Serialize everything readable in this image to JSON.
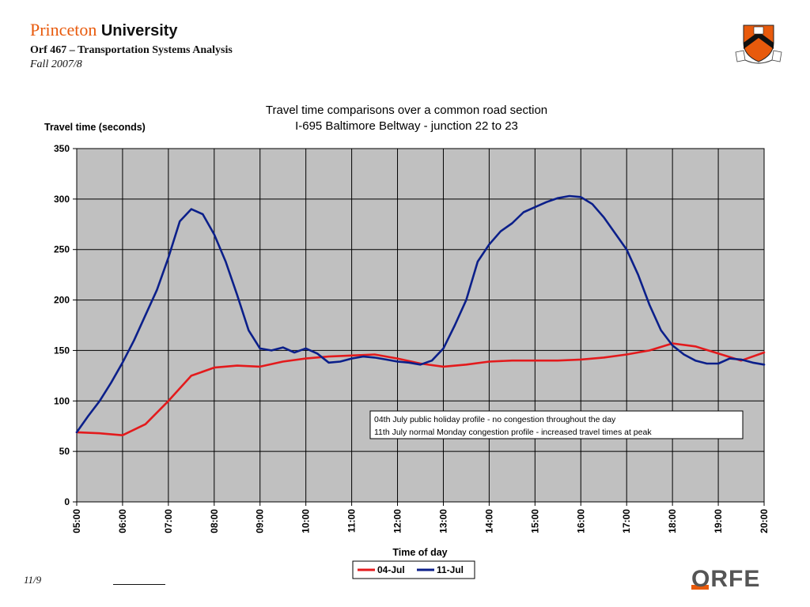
{
  "header": {
    "brand_part1": "Princeton",
    "brand_part2": "University",
    "course": "Orf 467 – Transportation Systems Analysis",
    "term": "Fall 2007/8"
  },
  "footer": {
    "date": "11/9",
    "logo_text": "ORFE"
  },
  "colors": {
    "accent": "#e85a0c",
    "plot_bg": "#c0c0c0",
    "series_jul4": "#e31a1c",
    "series_jul11": "#0b1f8a"
  },
  "chart_data": {
    "type": "line",
    "title": "Travel time comparisons over a common road section",
    "subtitle": "I-695 Baltimore Beltway - junction 22 to 23",
    "ylabel": "Travel time (seconds)",
    "xlabel": "Time of day",
    "ylim": [
      0,
      350
    ],
    "yticks": [
      "0",
      "50",
      "100",
      "150",
      "200",
      "250",
      "300",
      "350"
    ],
    "xticks": [
      "05:00",
      "06:00",
      "07:00",
      "08:00",
      "09:00",
      "10:00",
      "11:00",
      "12:00",
      "13:00",
      "14:00",
      "15:00",
      "16:00",
      "17:00",
      "18:00",
      "19:00",
      "20:00"
    ],
    "grid": true,
    "legend_position": "bottom",
    "annotation": [
      "04th July public holiday profile - no congestion throughout the day",
      "11th July normal Monday congestion profile - increased travel times at peak"
    ],
    "series": [
      {
        "name": "04-Jul",
        "x": [
          "05:00",
          "05:30",
          "06:00",
          "06:30",
          "07:00",
          "07:30",
          "08:00",
          "08:30",
          "09:00",
          "09:30",
          "10:00",
          "10:30",
          "11:00",
          "11:30",
          "12:00",
          "12:30",
          "13:00",
          "13:30",
          "14:00",
          "14:30",
          "15:00",
          "15:30",
          "16:00",
          "16:30",
          "17:00",
          "17:30",
          "18:00",
          "18:30",
          "19:00",
          "19:30",
          "20:00"
        ],
        "values": [
          69,
          68,
          66,
          77,
          100,
          125,
          133,
          135,
          134,
          139,
          142,
          144,
          145,
          146,
          142,
          137,
          134,
          136,
          139,
          140,
          140,
          140,
          141,
          143,
          146,
          150,
          157,
          154,
          147,
          140,
          148
        ]
      },
      {
        "name": "11-Jul",
        "x": [
          "05:00",
          "05:15",
          "05:30",
          "05:45",
          "06:00",
          "06:15",
          "06:30",
          "06:45",
          "07:00",
          "07:15",
          "07:30",
          "07:45",
          "08:00",
          "08:15",
          "08:30",
          "08:45",
          "09:00",
          "09:15",
          "09:30",
          "09:45",
          "10:00",
          "10:15",
          "10:30",
          "10:45",
          "11:00",
          "11:15",
          "11:30",
          "11:45",
          "12:00",
          "12:15",
          "12:30",
          "12:45",
          "13:00",
          "13:15",
          "13:30",
          "13:45",
          "14:00",
          "14:15",
          "14:30",
          "14:45",
          "15:00",
          "15:15",
          "15:30",
          "15:45",
          "16:00",
          "16:15",
          "16:30",
          "16:45",
          "17:00",
          "17:15",
          "17:30",
          "17:45",
          "18:00",
          "18:15",
          "18:30",
          "18:45",
          "19:00",
          "19:15",
          "19:30",
          "19:45",
          "20:00"
        ],
        "values": [
          69,
          85,
          100,
          118,
          138,
          160,
          185,
          210,
          242,
          278,
          290,
          285,
          265,
          238,
          205,
          170,
          152,
          150,
          153,
          148,
          152,
          147,
          138,
          139,
          142,
          144,
          143,
          141,
          139,
          138,
          136,
          140,
          152,
          175,
          200,
          238,
          255,
          268,
          276,
          287,
          292,
          297,
          301,
          303,
          302,
          295,
          282,
          266,
          250,
          225,
          195,
          170,
          155,
          146,
          140,
          137,
          137,
          142,
          141,
          138,
          136
        ]
      }
    ]
  }
}
